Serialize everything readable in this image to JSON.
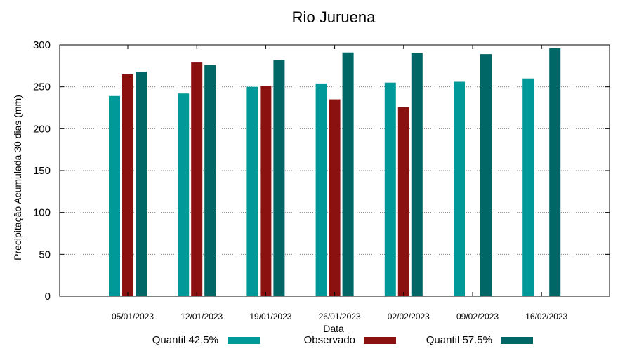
{
  "chart_data": {
    "type": "bar",
    "title": "Rio Juruena",
    "xlabel": "Data",
    "ylabel": "Precipitação Acumulada 30 dias (mm)",
    "ylim": [
      0,
      300
    ],
    "yticks": [
      0,
      50,
      100,
      150,
      200,
      250,
      300
    ],
    "grid": "horizontal dotted",
    "legend_position": "bottom",
    "categories": [
      "05/01/2023",
      "12/01/2023",
      "19/01/2023",
      "26/01/2023",
      "02/02/2023",
      "09/02/2023",
      "16/02/2023"
    ],
    "series": [
      {
        "name": "Quantil 42.5%",
        "color": "#009999",
        "values": [
          239,
          242,
          250,
          254,
          255,
          256,
          260
        ]
      },
      {
        "name": "Observado",
        "color": "#8b1010",
        "values": [
          265,
          279,
          251,
          235,
          226,
          null,
          null
        ]
      },
      {
        "name": "Quantil 57.5%",
        "color": "#006666",
        "values": [
          268,
          276,
          282,
          291,
          290,
          289,
          296
        ]
      }
    ]
  }
}
